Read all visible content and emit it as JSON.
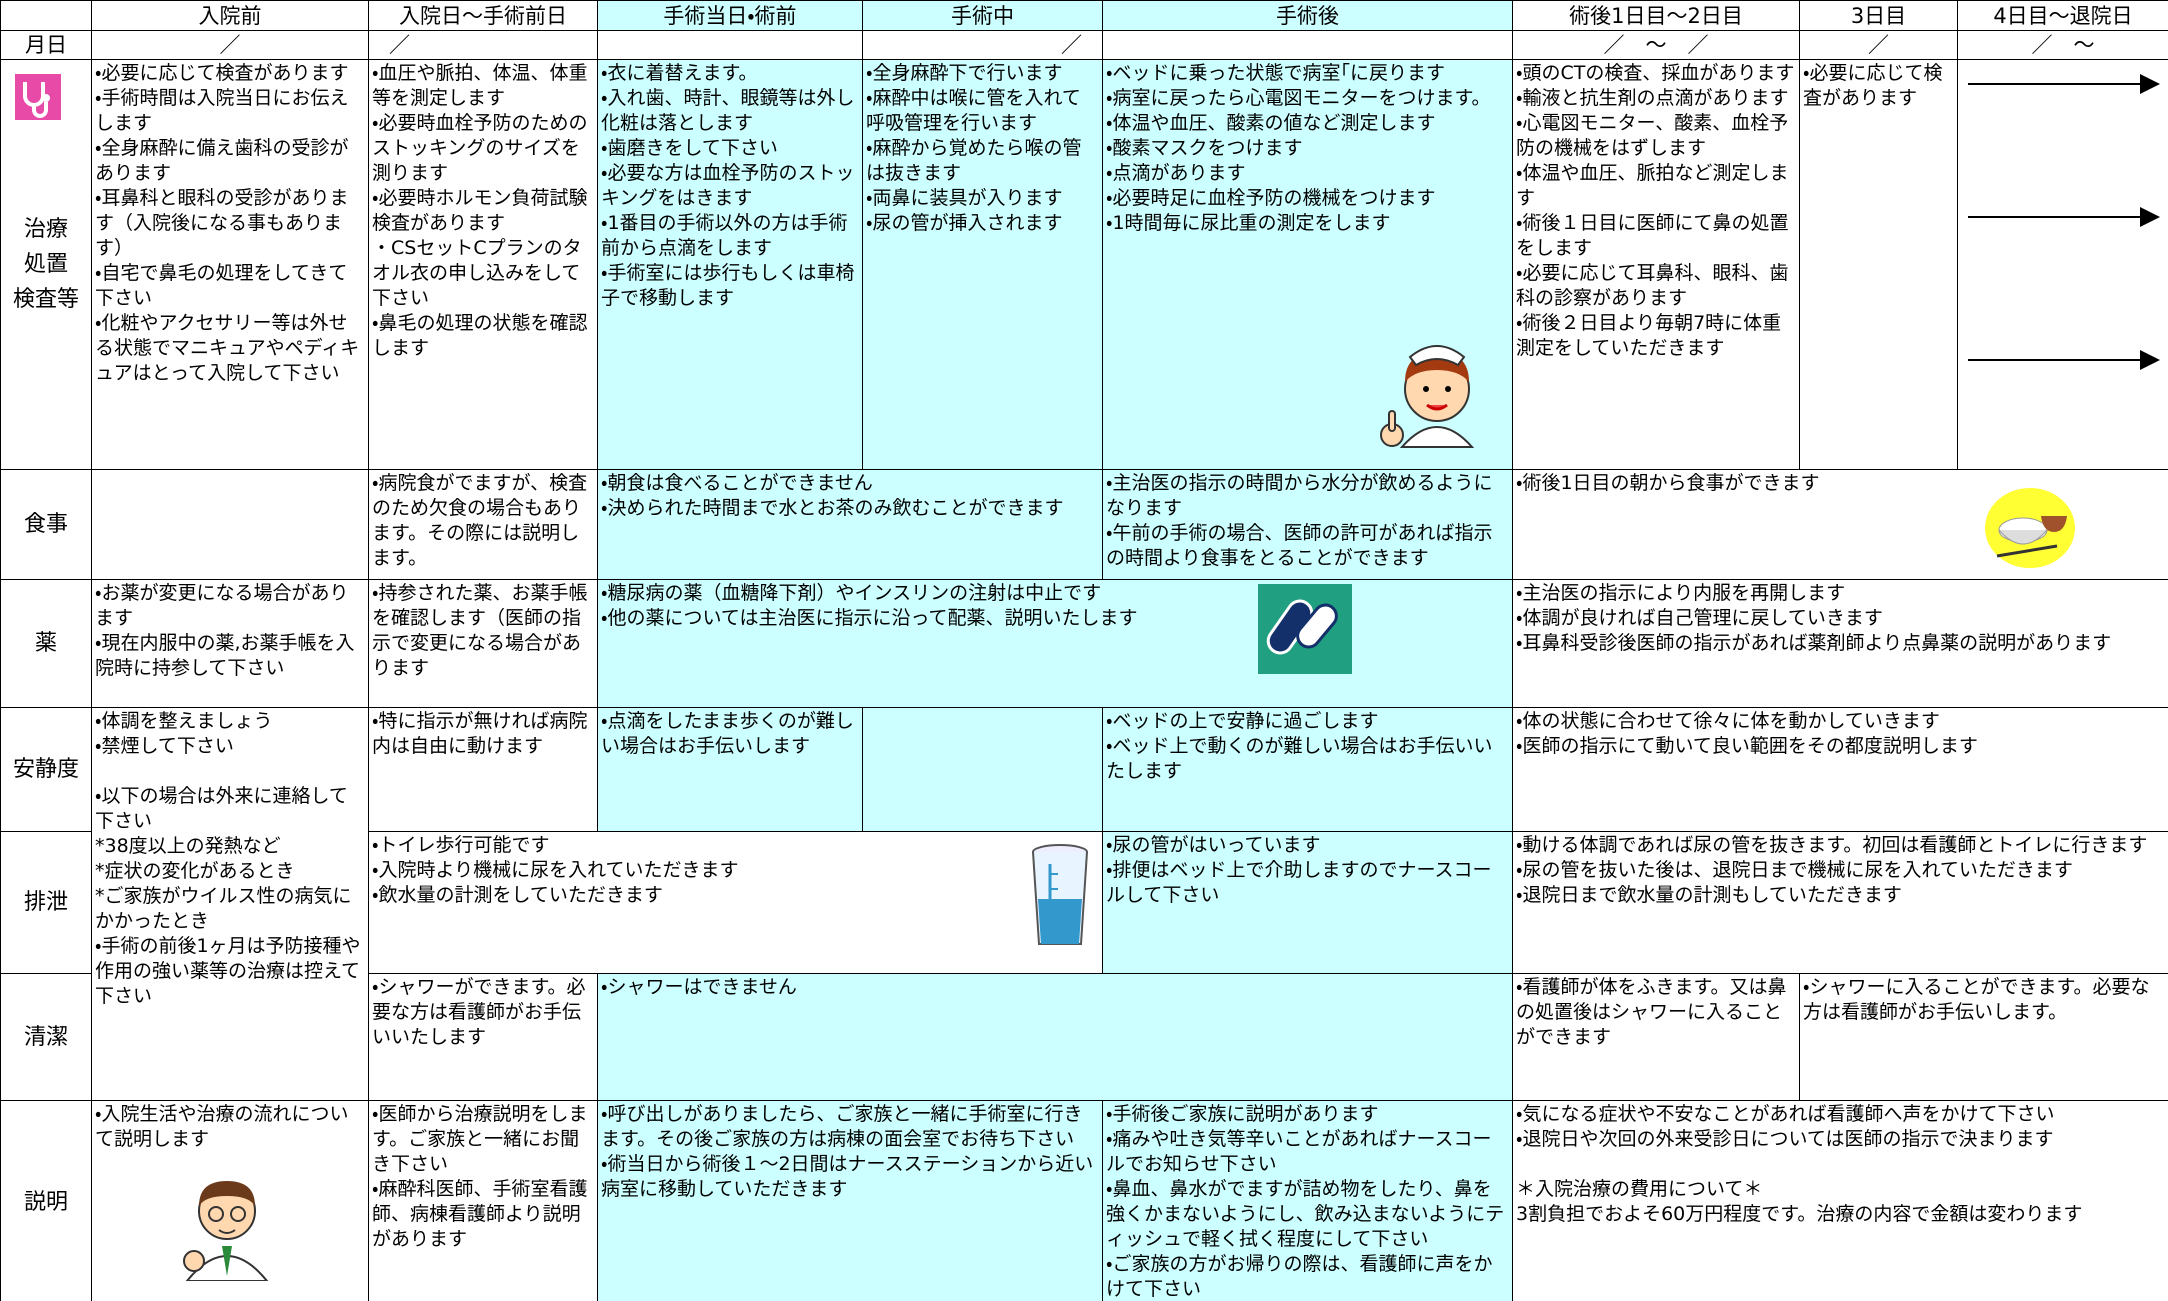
{
  "header": {
    "columns": [
      "入院前",
      "入院日〜手術前日",
      "手術当日・術前",
      "手術中",
      "手術後",
      "術後1日目〜2日目",
      "3日目",
      "4日目〜退院日"
    ]
  },
  "dates": {
    "label": "月日",
    "cells": [
      "／",
      "／",
      "／",
      "／　〜　／",
      "／",
      "／　〜"
    ]
  },
  "rows": [
    {
      "label": [
        "治療",
        "処置",
        "検査等"
      ],
      "cells": [
        [
          "・必要に応じて検査があります",
          "・手術時間は入院当日にお伝えします",
          "・全身麻酔に備え歯科の受診があります",
          "・耳鼻科と眼科の受診があります（入院後になる事もあります）",
          "・自宅で鼻毛の処理をしてきて下さい",
          "・化粧やアクセサリー等は外せる状態でマニキュアやペディキュアはとって入院して下さい"
        ],
        [
          "・血圧や脈拍、体温、体重等を測定します",
          "・必要時血栓予防のためのストッキングのサイズを測ります",
          "・必要時ホルモン負荷試験検査があります",
          "・CSセットCプランのタオル衣の申し込みをして下さい",
          "・鼻毛の処理の状態を確認します"
        ],
        [
          "・衣に着替えます。",
          "・入れ歯、時計、眼鏡等は外し化粧は落とします",
          "・歯磨きをして下さい",
          "・必要な方は血栓予防のストッキングをはきます",
          "・1番目の手術以外の方は手術前から点滴をします",
          "・手術室には歩行もしくは車椅子で移動します"
        ],
        [
          "・全身麻酔下で行います",
          "・麻酔中は喉に管を入れて呼吸管理を行います",
          "・麻酔から覚めたら喉の管は抜きます",
          "・両鼻に装具が入ります",
          "・尿の管が挿入されます"
        ],
        [
          "・ベッドに乗った状態で病室｢に戻ります",
          "・病室に戻ったら心電図モニターをつけます。",
          "・体温や血圧、酸素の値など測定します",
          "・酸素マスクをつけます",
          "・点滴があります",
          "・必要時足に血栓予防の機械をつけます",
          "・1時間毎に尿比重の測定をします"
        ],
        [
          "・頭のCTの検査、採血があります",
          "・輸液と抗生剤の点滴があります",
          "・心電図モニター、酸素、血栓予防の機械をはずします",
          "・体温や血圧、脈拍など測定します",
          "・術後１日目に医師にて鼻の処置をします",
          "・必要に応じて耳鼻科、眼科、歯科の診察があります",
          "・術後２日目より毎朝7時に体重測定をしていただきます"
        ],
        [
          "・必要に応じて検査があります"
        ]
      ]
    },
    {
      "label": [
        "食事"
      ],
      "cells": [
        [
          "・病院食がでますが、検査のため欠食の場合もあります。その際には説明します。"
        ],
        [
          "・朝食は食べることができません",
          "・決められた時間まで水とお茶のみ飲むことができます"
        ],
        [
          "・主治医の指示の時間から水分が飲めるようになります",
          "・午前の手術の場合、医師の許可があれば指示の時間より食事をとることができます"
        ],
        [
          "・術後1日目の朝から食事ができます"
        ]
      ]
    },
    {
      "label": [
        "薬"
      ],
      "cells": [
        [
          "・お薬が変更になる場合があります",
          "・現在内服中の薬,お薬手帳を入院時に持参して下さい"
        ],
        [
          "・持参された薬、お薬手帳を確認します（医師の指示で変更になる場合があります"
        ],
        [
          "・糖尿病の薬（血糖降下剤）やインスリンの注射は中止です",
          "・他の薬については主治医に指示に沿って配薬、説明いたします"
        ],
        [
          "・主治医の指示により内服を再開します",
          "・体調が良ければ自己管理に戻していきます",
          "・耳鼻科受診後医師の指示があれば薬剤師より点鼻薬の説明があります"
        ]
      ]
    },
    {
      "label": [
        "安静度"
      ],
      "cells": [
        [
          "・体調を整えましょう",
          "・禁煙して下さい",
          "・以下の場合は外来に連絡して下さい",
          "*38度以上の発熱など",
          "*症状の変化があるとき",
          "*ご家族がウイルス性の病気にかかったとき",
          "・手術の前後1ヶ月は予防接種や作用の強い薬等の治療は控えて下さい"
        ],
        [
          "・特に指示が無ければ病院内は自由に動けます"
        ],
        [
          "・点滴をしたまま歩くのが難しい場合はお手伝いします"
        ],
        [
          "・ベッドの上で安静に過ごします",
          "・ベッド上で動くのが難しい場合はお手伝いいたします"
        ],
        [
          "・体の状態に合わせて徐々に体を動かしていきます",
          "・医師の指示にて動いて良い範囲をその都度説明します"
        ]
      ]
    },
    {
      "label": [
        "排泄"
      ],
      "cells": [
        [
          "・トイレ歩行可能です",
          "・入院時より機械に尿を入れていただきます",
          "・飲水量の計測をしていただきます"
        ],
        [
          "・尿の管がはいっています",
          "・排便はベッド上で介助しますのでナースコールして下さい"
        ],
        [
          "・動ける体調であれば尿の管を抜きます。初回は看護師とトイレに行きます",
          "・尿の管を抜いた後は、退院日まで機械に尿を入れていただきます",
          "・退院日まで飲水量の計測もしていただきます"
        ]
      ]
    },
    {
      "label": [
        "清潔"
      ],
      "cells": [
        [
          "・シャワーができます。必要な方は看護師がお手伝いいたします"
        ],
        [
          "・シャワーはできません"
        ],
        [
          "・看護師が体をふきます。又は鼻の処置後はシャワーに入ることができます"
        ],
        [
          "・シャワーに入ることができます。必要な方は看護師がお手伝いします。"
        ]
      ]
    },
    {
      "label": [
        "説明"
      ],
      "cells": [
        [
          "・入院生活や治療の流れについて説明します"
        ],
        [
          "・医師から治療説明をします。ご家族と一緒にお聞き下さい",
          "・麻酔科医師、手術室看護師、病棟看護師より説明があります"
        ],
        [
          "・呼び出しがありましたら、ご家族と一緒に手術室に行きます。その後ご家族の方は病棟の面会室でお待ち下さい",
          "・術当日から術後１～2日間はナースステーションから近い病室に移動していただきます"
        ],
        [
          "・手術後ご家族に説明があります",
          "・痛みや吐き気等辛いことがあればナースコールでお知らせ下さい",
          "・鼻血、鼻水がでますが詰め物をしたり、鼻を強くかまないようにし、飲み込まないようにティッシュで軽く拭く程度にして下さい",
          "・ご家族の方がお帰りの際は、看護師に声をかけて下さい"
        ],
        [
          "・気になる症状や不安なことがあれば看護師へ声をかけて下さい",
          "・退院日や次回の外来受診日については医師の指示で決まります",
          "＊入院治療の費用について＊",
          "3割負担でおよそ60万円程度です。治療の内容で金額は変わります"
        ]
      ]
    }
  ]
}
